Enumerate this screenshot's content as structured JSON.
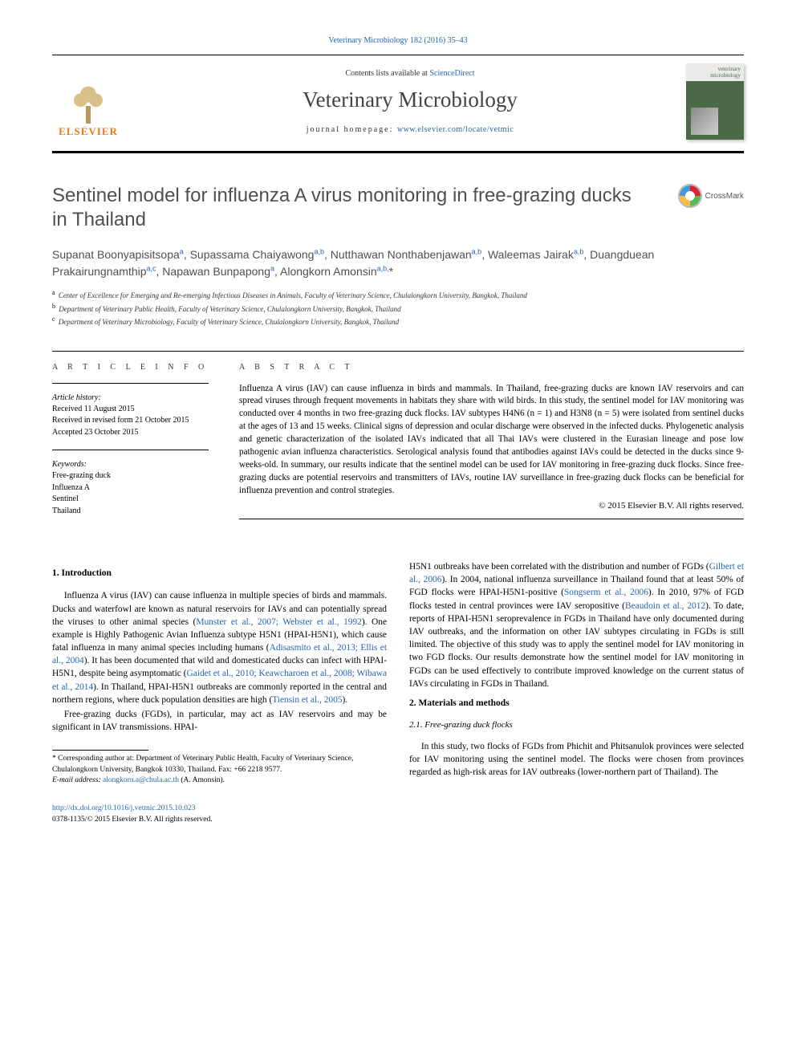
{
  "header": {
    "citation": "Veterinary Microbiology 182 (2016) 35–43",
    "contents_prefix": "Contents lists available at ",
    "contents_link": "ScienceDirect",
    "journal_name": "Veterinary Microbiology",
    "homepage_prefix": "journal homepage: ",
    "homepage_url": "www.elsevier.com/locate/vetmic",
    "elsevier": "ELSEVIER",
    "crossmark": "CrossMark",
    "cover_text": "veterinary microbiology"
  },
  "article": {
    "title": "Sentinel model for influenza A virus monitoring in free-grazing ducks in Thailand",
    "authors_html": "Supanat Boonyapisitsopa<sup>a</sup>, Supassama Chaiyawong<sup>a,b</sup>, Nutthawan Nonthabenjawan<sup>a,b</sup>, Waleemas Jairak<sup>a,b</sup>, Duangduean Prakairungnamthip<sup>a,c</sup>, Napawan Bunpapong<sup>a</sup>, Alongkorn Amonsin<sup>a,b,</sup>*",
    "affiliations": [
      {
        "sup": "a",
        "text": "Center of Excellence for Emerging and Re-emerging Infectious Diseases in Animals, Faculty of Veterinary Science, Chulalongkorn University, Bangkok, Thailand"
      },
      {
        "sup": "b",
        "text": "Department of Veterinary Public Health, Faculty of Veterinary Science, Chulalongkorn University, Bangkok, Thailand"
      },
      {
        "sup": "c",
        "text": "Department of Veterinary Microbiology, Faculty of Veterinary Science, Chulalongkorn University, Bangkok, Thailand"
      }
    ]
  },
  "info": {
    "heading": "A R T I C L E  I N F O",
    "history_label": "Article history:",
    "history": "Received 11 August 2015\nReceived in revised form 21 October 2015\nAccepted 23 October 2015",
    "keywords_label": "Keywords:",
    "keywords": "Free-grazing duck\nInfluenza A\nSentinel\nThailand"
  },
  "abstract": {
    "heading": "A B S T R A C T",
    "text": "Influenza A virus (IAV) can cause influenza in birds and mammals. In Thailand, free-grazing ducks are known IAV reservoirs and can spread viruses through frequent movements in habitats they share with wild birds. In this study, the sentinel model for IAV monitoring was conducted over 4 months in two free-grazing duck flocks. IAV subtypes H4N6 (n = 1) and H3N8 (n = 5) were isolated from sentinel ducks at the ages of 13 and 15 weeks. Clinical signs of depression and ocular discharge were observed in the infected ducks. Phylogenetic analysis and genetic characterization of the isolated IAVs indicated that all Thai IAVs were clustered in the Eurasian lineage and pose low pathogenic avian influenza characteristics. Serological analysis found that antibodies against IAVs could be detected in the ducks since 9-weeks-old. In summary, our results indicate that the sentinel model can be used for IAV monitoring in free-grazing duck flocks. Since free-grazing ducks are potential reservoirs and transmitters of IAVs, routine IAV surveillance in free-grazing duck flocks can be beneficial for influenza prevention and control strategies.",
    "copyright": "© 2015 Elsevier B.V. All rights reserved."
  },
  "body": {
    "s1_heading": "1. Introduction",
    "p1_a": "Influenza A virus (IAV) can cause influenza in multiple species of birds and mammals. Ducks and waterfowl are known as natural reservoirs for IAVs and can potentially spread the viruses to other animal species (",
    "p1_ref1": "Munster et al., 2007; Webster et al., 1992",
    "p1_b": "). One example is Highly Pathogenic Avian Influenza subtype H5N1 (HPAI-H5N1), which cause fatal influenza in many animal species including humans (",
    "p1_ref2": "Adisasmito et al., 2013; Ellis et al., 2004",
    "p1_c": "). It has been documented that wild and domesticated ducks can infect with HPAI-H5N1, despite being asymptomatic (",
    "p1_ref3": "Gaidet et al., 2010; Keawcharoen et al., 2008; Wibawa et al., 2014",
    "p1_d": "). In Thailand, HPAI-H5N1 outbreaks are commonly reported in the central and northern regions, where duck population densities are high (",
    "p1_ref4": "Tiensin et al., 2005",
    "p1_e": ").",
    "p2_a": "Free-grazing ducks (FGDs), in particular, may act as IAV reservoirs and may be significant in IAV transmissions. HPAI-",
    "p2_b": "H5N1 outbreaks have been correlated with the distribution and number of FGDs (",
    "p2_ref1": "Gilbert et al., 2006",
    "p2_c": "). In 2004, national influenza surveillance in Thailand found that at least 50% of FGD flocks were HPAI-H5N1-positive (",
    "p2_ref2": "Songserm et al., 2006",
    "p2_d": "). In 2010, 97% of FGD flocks tested in central provinces were IAV seropositive (",
    "p2_ref3": "Beaudoin et al., 2012",
    "p2_e": "). To date, reports of HPAI-H5N1 seroprevalence in FGDs in Thailand have only documented during IAV outbreaks, and the information on other IAV subtypes circulating in FGDs is still limited. The objective of this study was to apply the sentinel model for IAV monitoring in two FGD flocks. Our results demonstrate how the sentinel model for IAV monitoring in FGDs can be used effectively to contribute improved knowledge on the current status of IAVs circulating in FGDs in Thailand.",
    "s2_heading": "2. Materials and methods",
    "s21_heading": "2.1. Free-grazing duck flocks",
    "p3": "In this study, two flocks of FGDs from Phichit and Phitsanulok provinces were selected for IAV monitoring using the sentinel model. The flocks were chosen from provinces regarded as high-risk areas for IAV outbreaks (lower-northern part of Thailand). The"
  },
  "footnote": {
    "corr": "* Corresponding author at: Department of Veterinary Public Health, Faculty of Veterinary Science, Chulalongkorn University, Bangkok 10330, Thailand. Fax: +66 2218 9577.",
    "email_label": "E-mail address: ",
    "email": "alongkorn.a@chula.ac.th",
    "email_suffix": " (A. Amonsin)."
  },
  "doi": {
    "url": "http://dx.doi.org/10.1016/j.vetmic.2015.10.023",
    "issn_line": "0378-1135/© 2015 Elsevier B.V. All rights reserved."
  },
  "colors": {
    "link": "#2464b0",
    "heading_gray": "#4f4f4f",
    "elsevier_orange": "#e57a1c"
  }
}
